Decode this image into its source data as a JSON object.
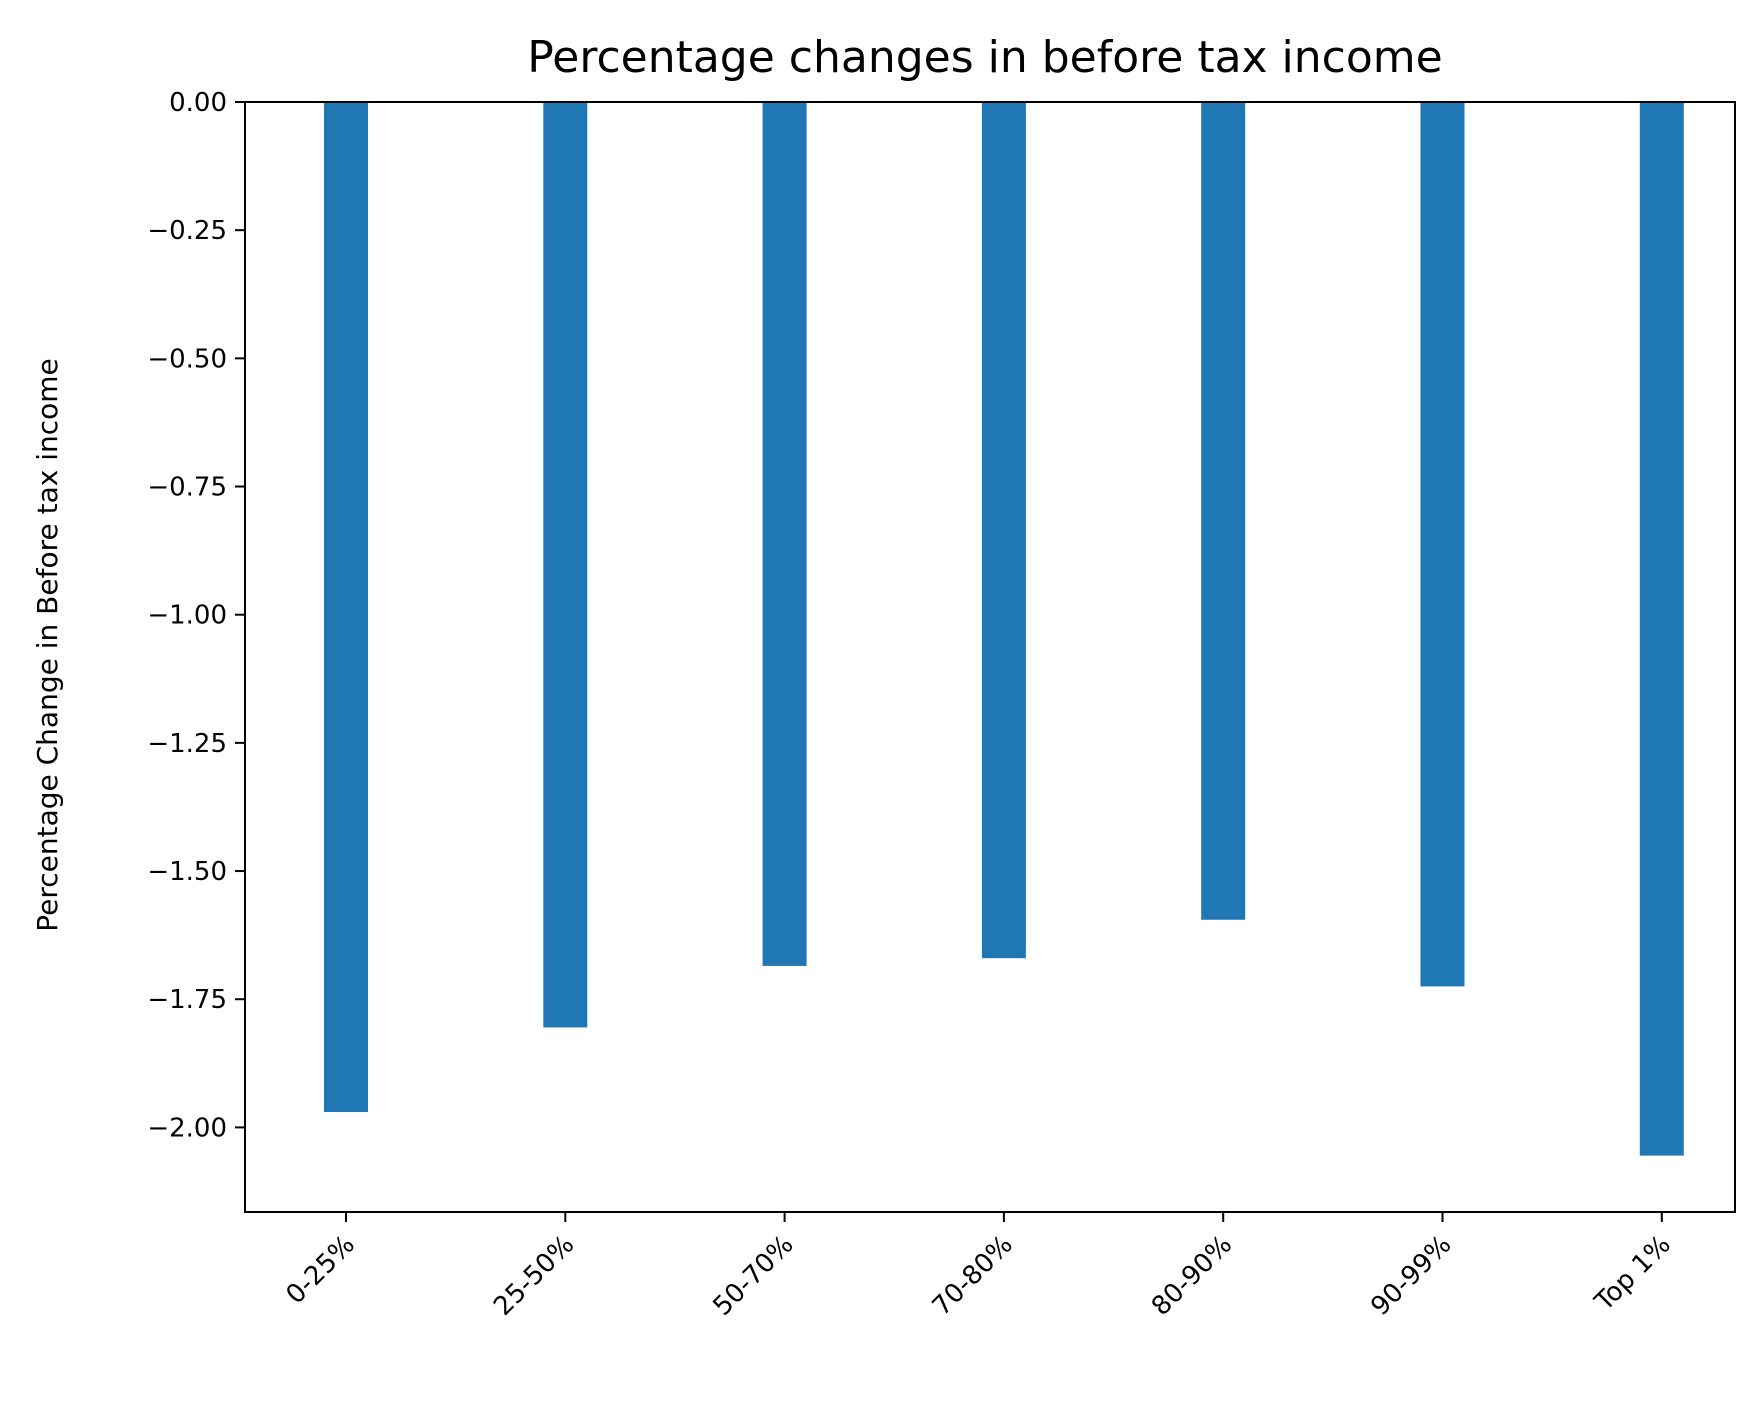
{
  "chart_data": {
    "type": "bar",
    "title": "Percentage changes in before tax income",
    "xlabel": "",
    "ylabel": "Percentage Change in Before tax income",
    "categories": [
      "0-25%",
      "25-50%",
      "50-70%",
      "70-80%",
      "80-90%",
      "90-99%",
      "Top 1%"
    ],
    "values": [
      -1.97,
      -1.805,
      -1.685,
      -1.67,
      -1.595,
      -1.725,
      -2.055
    ],
    "ylim": [
      -2.165,
      0.0
    ],
    "yticks": [
      0.0,
      -0.25,
      -0.5,
      -0.75,
      -1.0,
      -1.25,
      -1.5,
      -1.75,
      -2.0
    ],
    "ytick_labels": [
      "0.00",
      "−0.25",
      "−0.50",
      "−0.75",
      "−1.00",
      "−1.25",
      "−1.50",
      "−1.75",
      "−2.00"
    ],
    "xtick_rotation_deg": -45,
    "bar_color": "#1f77b4",
    "grid": false,
    "legend": "none"
  }
}
